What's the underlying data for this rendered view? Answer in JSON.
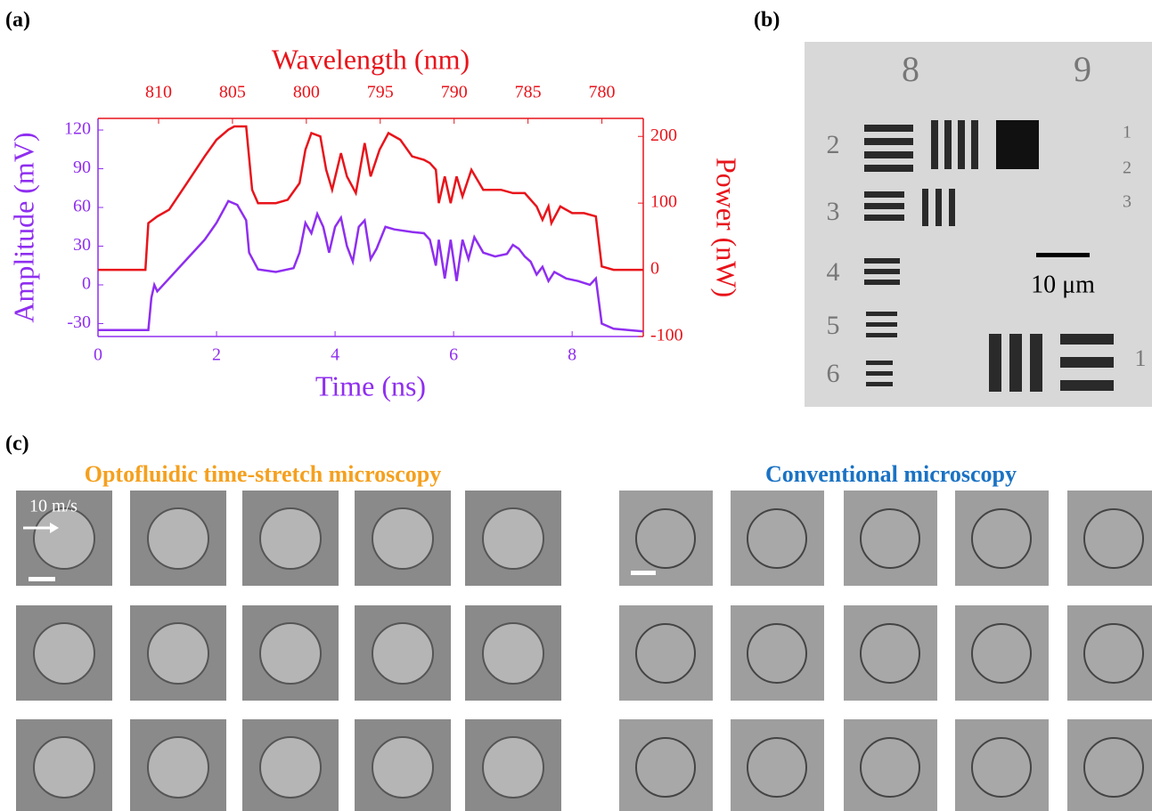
{
  "chart_data": {
    "type": "line",
    "xlabel": "Time (ns)",
    "ylabel": "Amplitude (mV)",
    "y2label": "Power (nW)",
    "x2label": "Wavelength (nm)",
    "xlim": [
      0,
      9.2
    ],
    "xticks": [
      0,
      2,
      4,
      6,
      8
    ],
    "ylim": [
      -40,
      129
    ],
    "yticks": [
      -30,
      0,
      30,
      60,
      90,
      120
    ],
    "y2lim": [
      -100,
      227
    ],
    "y2ticks": [
      -100,
      0,
      100,
      200
    ],
    "x2lim": [
      814.1,
      777.2
    ],
    "x2ticks": [
      810,
      805,
      800,
      795,
      790,
      785,
      780
    ],
    "series": [
      {
        "color": "#8f2ef0",
        "axis": "y",
        "x": [
          0,
          0.85,
          0.9,
          0.95,
          1.0,
          1.2,
          1.5,
          1.8,
          2.0,
          2.2,
          2.35,
          2.5,
          2.55,
          2.7,
          3.0,
          3.3,
          3.4,
          3.5,
          3.6,
          3.7,
          3.8,
          3.9,
          4.0,
          4.1,
          4.2,
          4.3,
          4.4,
          4.5,
          4.6,
          4.7,
          4.85,
          5.0,
          5.3,
          5.5,
          5.6,
          5.7,
          5.75,
          5.85,
          5.95,
          6.05,
          6.15,
          6.25,
          6.35,
          6.5,
          6.7,
          6.9,
          7.0,
          7.1,
          7.2,
          7.3,
          7.4,
          7.5,
          7.6,
          7.7,
          7.9,
          8.1,
          8.3,
          8.4,
          8.5,
          8.7,
          9.2
        ],
        "values": [
          -35,
          -35,
          -10,
          0,
          -5,
          5,
          20,
          35,
          48,
          65,
          62,
          50,
          25,
          12,
          10,
          13,
          25,
          48,
          40,
          55,
          45,
          25,
          45,
          52,
          30,
          18,
          45,
          50,
          20,
          28,
          45,
          43,
          41,
          40,
          35,
          15,
          35,
          5,
          35,
          3,
          35,
          20,
          37,
          25,
          22,
          24,
          31,
          28,
          22,
          18,
          8,
          14,
          3,
          10,
          5,
          3,
          0,
          5,
          -30,
          -34,
          -36
        ]
      },
      {
        "color": "#e8141b",
        "axis": "y2",
        "x": [
          0,
          0.8,
          0.85,
          1.0,
          1.2,
          1.5,
          1.8,
          2.0,
          2.2,
          2.3,
          2.5,
          2.6,
          2.7,
          3.0,
          3.2,
          3.4,
          3.5,
          3.6,
          3.75,
          3.85,
          3.95,
          4.1,
          4.2,
          4.35,
          4.5,
          4.6,
          4.75,
          4.9,
          5.1,
          5.3,
          5.5,
          5.6,
          5.7,
          5.75,
          5.85,
          5.95,
          6.05,
          6.15,
          6.3,
          6.5,
          6.8,
          7.0,
          7.2,
          7.4,
          7.5,
          7.6,
          7.65,
          7.8,
          8.0,
          8.2,
          8.4,
          8.5,
          8.7,
          9.2
        ],
        "values": [
          0,
          0,
          70,
          80,
          90,
          130,
          170,
          195,
          210,
          215,
          215,
          120,
          100,
          100,
          105,
          130,
          180,
          205,
          200,
          150,
          120,
          175,
          140,
          115,
          190,
          140,
          180,
          205,
          195,
          170,
          165,
          160,
          150,
          100,
          140,
          100,
          140,
          110,
          150,
          120,
          120,
          115,
          115,
          95,
          75,
          95,
          70,
          95,
          85,
          85,
          80,
          5,
          0,
          0
        ]
      }
    ]
  },
  "panels": {
    "a": {
      "label": "(a)"
    },
    "b": {
      "label": "(b)",
      "scale": "10 μm",
      "target_labels": [
        "8",
        "9",
        "2",
        "3",
        "4",
        "5",
        "6",
        "1",
        "2",
        "3",
        "1"
      ]
    },
    "c": {
      "label": "(c)",
      "left_title": "Optofluidic time-stretch microscopy",
      "right_title": "Conventional microscopy",
      "speed": "10 m/s"
    }
  }
}
